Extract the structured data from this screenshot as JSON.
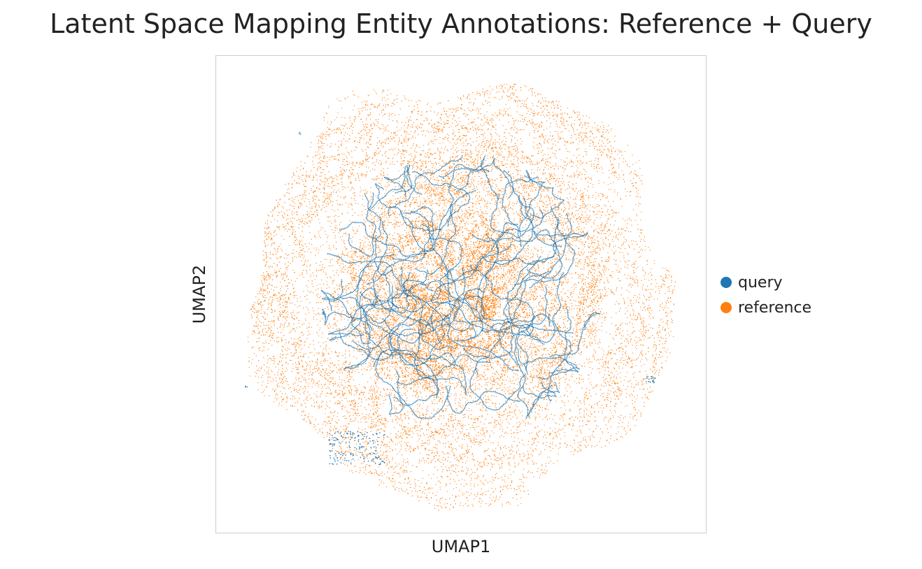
{
  "chart_data": {
    "type": "scatter",
    "title": "Latent Space Mapping Entity Annotations: Reference + Query",
    "xlabel": "UMAP1",
    "ylabel": "UMAP2",
    "xticks": [],
    "yticks": [],
    "grid": false,
    "legend_position": "right",
    "series": [
      {
        "name": "query",
        "color": "#1f77b4",
        "description_of_extent": "concentrated in the central region of the embedding, with small isolated clusters near the lower left and right edges"
      },
      {
        "name": "reference",
        "color": "#ff7f0e",
        "description_of_extent": "fills a roughly circular cloud surrounding and overlapping the query points"
      }
    ]
  }
}
